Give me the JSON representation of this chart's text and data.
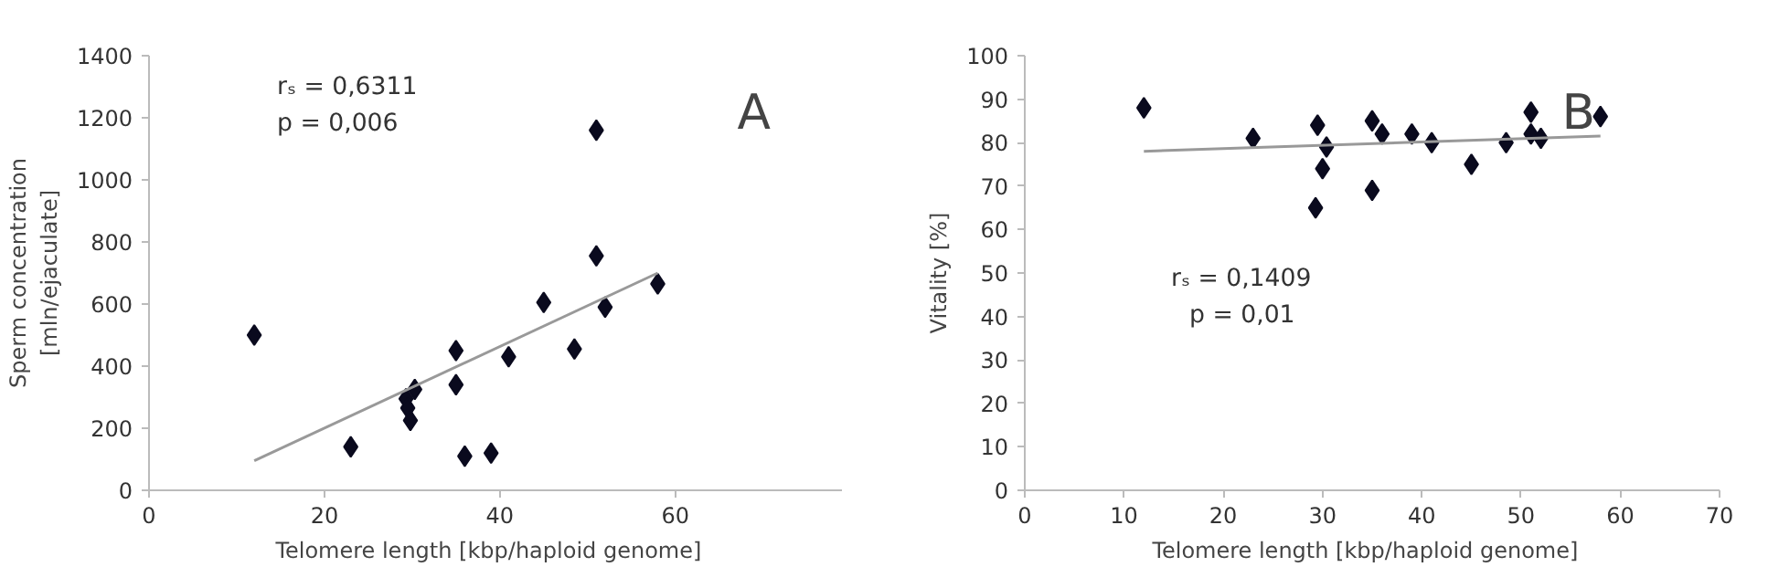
{
  "chart_data": [
    {
      "type": "scatter",
      "title": "A",
      "xlabel": "Telomere length  [kbp/haploid  genome]",
      "ylabel": "Sperm concentration\n[mln/ejaculate]",
      "xlim": [
        0,
        79
      ],
      "xticks": [
        0,
        20,
        40,
        60
      ],
      "ylim": [
        0,
        1400
      ],
      "yticks": [
        0,
        200,
        400,
        600,
        800,
        1000,
        1200,
        1400
      ],
      "grid": false,
      "annotations": [
        "rₛ = 0,6311",
        "p =  0,006"
      ],
      "series": [
        {
          "marker": "diamond",
          "color": "#0a0a1e",
          "x": [
            12,
            23,
            29.3,
            29.5,
            29.8,
            30.3,
            35,
            35,
            36,
            39,
            41,
            45,
            48.5,
            51,
            51,
            52,
            58
          ],
          "values": [
            500,
            140,
            295,
            265,
            225,
            325,
            450,
            340,
            110,
            120,
            430,
            605,
            455,
            1160,
            755,
            590,
            665
          ]
        },
        {
          "type": "line",
          "color": "#999999",
          "x": [
            12,
            58
          ],
          "values": [
            95,
            700
          ]
        }
      ]
    },
    {
      "type": "scatter",
      "title": "B",
      "xlabel": "Telomere length  [kbp/haploid  genome]",
      "ylabel": "Vitality [%]",
      "xlim": [
        0,
        70
      ],
      "xticks": [
        0,
        10,
        20,
        30,
        40,
        50,
        60,
        70
      ],
      "ylim": [
        0,
        100
      ],
      "yticks": [
        0,
        10,
        20,
        30,
        40,
        50,
        60,
        70,
        80,
        90,
        100
      ],
      "grid": false,
      "annotations": [
        "rₛ = 0,1409",
        "p = 0,01"
      ],
      "series": [
        {
          "marker": "diamond",
          "color": "#0a0a1e",
          "x": [
            12,
            23,
            29.5,
            29.3,
            30,
            30.4,
            35,
            35,
            36,
            39,
            41,
            45,
            48.5,
            51,
            51,
            52,
            58
          ],
          "values": [
            88,
            81,
            84,
            65,
            74,
            79,
            85,
            69,
            82,
            82,
            80,
            75,
            80,
            87,
            82,
            81,
            86
          ]
        },
        {
          "type": "line",
          "color": "#999999",
          "x": [
            12,
            58
          ],
          "values": [
            78,
            81.5
          ]
        }
      ]
    }
  ]
}
